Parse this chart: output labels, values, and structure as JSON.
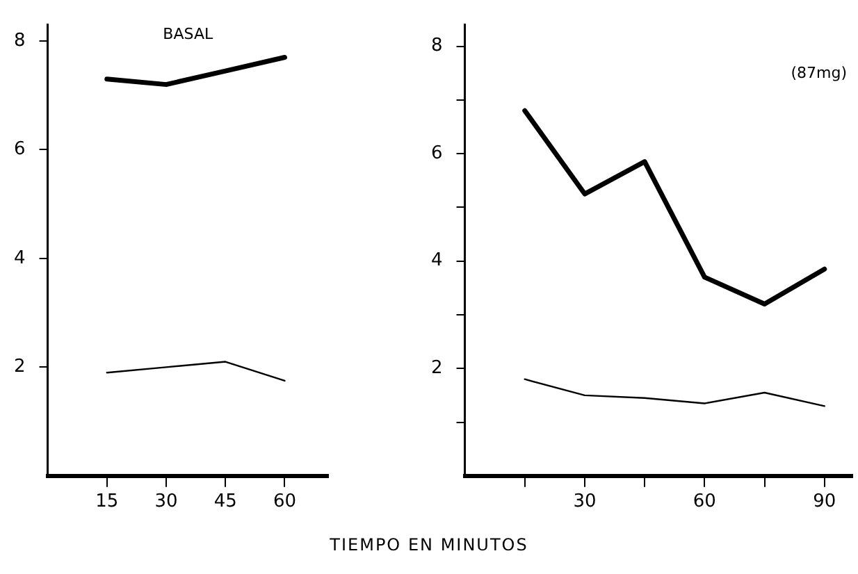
{
  "chart_data": [
    {
      "type": "line",
      "title": "BASAL",
      "xlabel": "TIEMPO EN MINUTOS",
      "x": [
        15,
        30,
        45,
        60
      ],
      "xlim": [
        0,
        71
      ],
      "xticks": [
        15,
        30,
        45,
        60
      ],
      "ylim": [
        0,
        8.3
      ],
      "yticks": [
        2,
        4,
        6,
        8
      ],
      "grid": false,
      "legend": false,
      "marker": "none",
      "line_style": "solid",
      "series": [
        {
          "color": "#000000",
          "values": [
            7.3,
            7.2,
            7.45,
            7.7
          ]
        },
        {
          "color": "#000000",
          "values": [
            1.9,
            2.0,
            2.1,
            1.75
          ]
        }
      ]
    },
    {
      "type": "line",
      "title": "(87mg)",
      "x": [
        15,
        30,
        45,
        60,
        75,
        90
      ],
      "xlim": [
        0,
        97
      ],
      "xticks": [
        {
          "value": 15,
          "label": null
        },
        30,
        {
          "value": 45,
          "label": null
        },
        60,
        {
          "value": 75,
          "label": null
        },
        90
      ],
      "ylim": [
        0,
        8.4
      ],
      "yticks": [
        {
          "value": 1,
          "label": null
        },
        2,
        {
          "value": 3,
          "label": null
        },
        4,
        {
          "value": 5,
          "label": null
        },
        6,
        {
          "value": 7,
          "label": null
        },
        8
      ],
      "grid": false,
      "legend": false,
      "marker": "none",
      "line_style": "solid",
      "series": [
        {
          "color": "#000000",
          "values": [
            6.8,
            5.25,
            5.85,
            3.7,
            3.2,
            3.85
          ]
        },
        {
          "color": "#000000",
          "values": [
            1.8,
            1.5,
            1.45,
            1.35,
            1.55,
            1.3
          ]
        }
      ]
    }
  ]
}
